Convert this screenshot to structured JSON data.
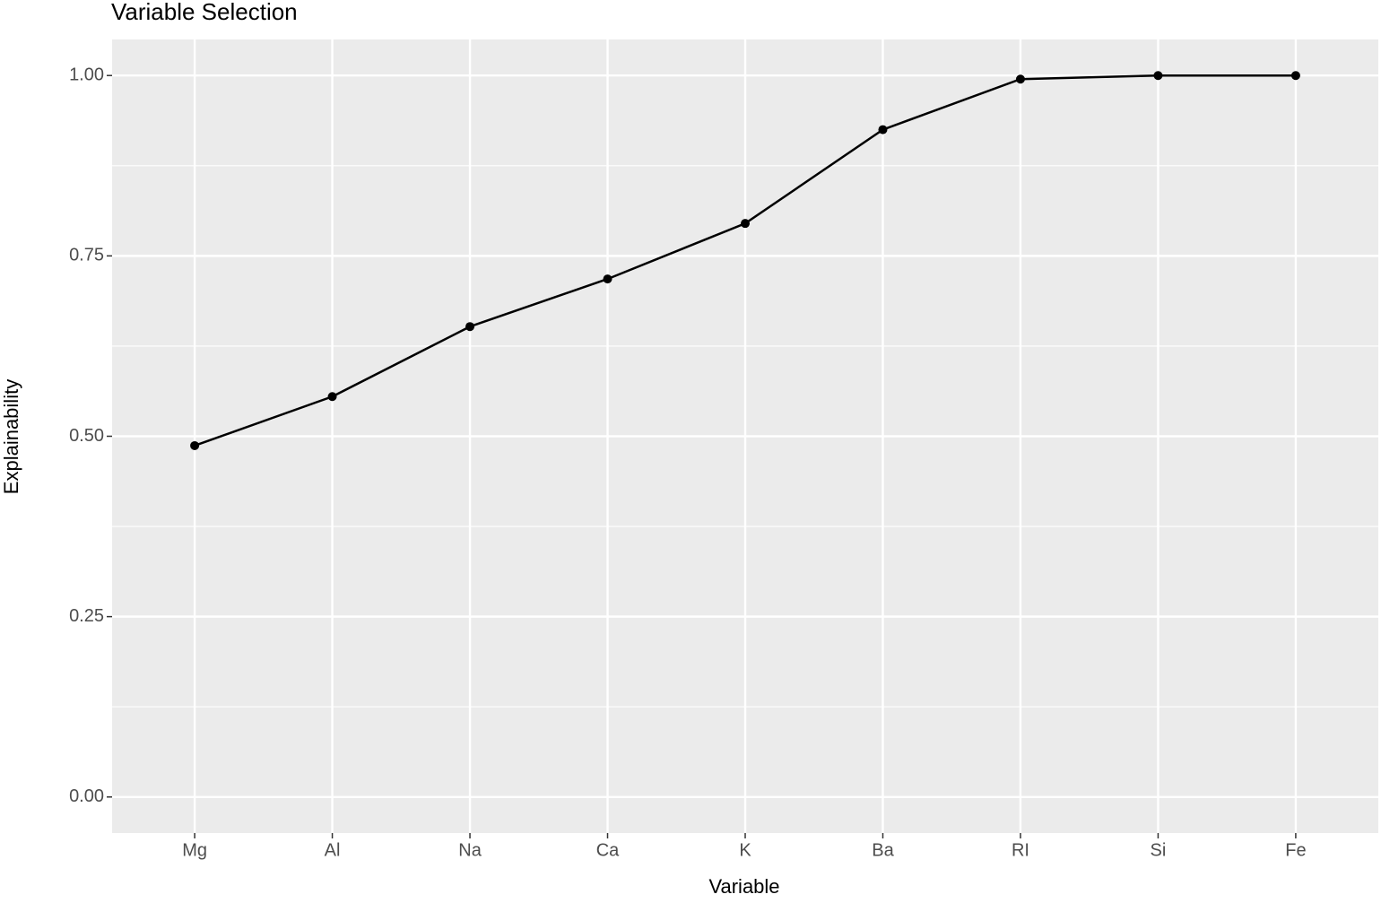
{
  "chart_data": {
    "type": "line",
    "title": "Variable Selection",
    "x_label": "Variable",
    "y_label": "Explainability",
    "categories": [
      "Mg",
      "Al",
      "Na",
      "Ca",
      "K",
      "Ba",
      "RI",
      "Si",
      "Fe"
    ],
    "values": [
      0.487,
      0.555,
      0.652,
      0.718,
      0.795,
      0.925,
      0.995,
      1.0,
      1.0
    ],
    "color": "#000000",
    "ylim": [
      -0.05,
      1.05
    ],
    "yticks": [
      {
        "value": 0,
        "label": "0.00"
      },
      {
        "value": 0.25,
        "label": "0.25"
      },
      {
        "value": 0.5,
        "label": "0.50"
      },
      {
        "value": 0.75,
        "label": "0.75"
      },
      {
        "value": 1,
        "label": "1.00"
      }
    ],
    "grid": true
  }
}
